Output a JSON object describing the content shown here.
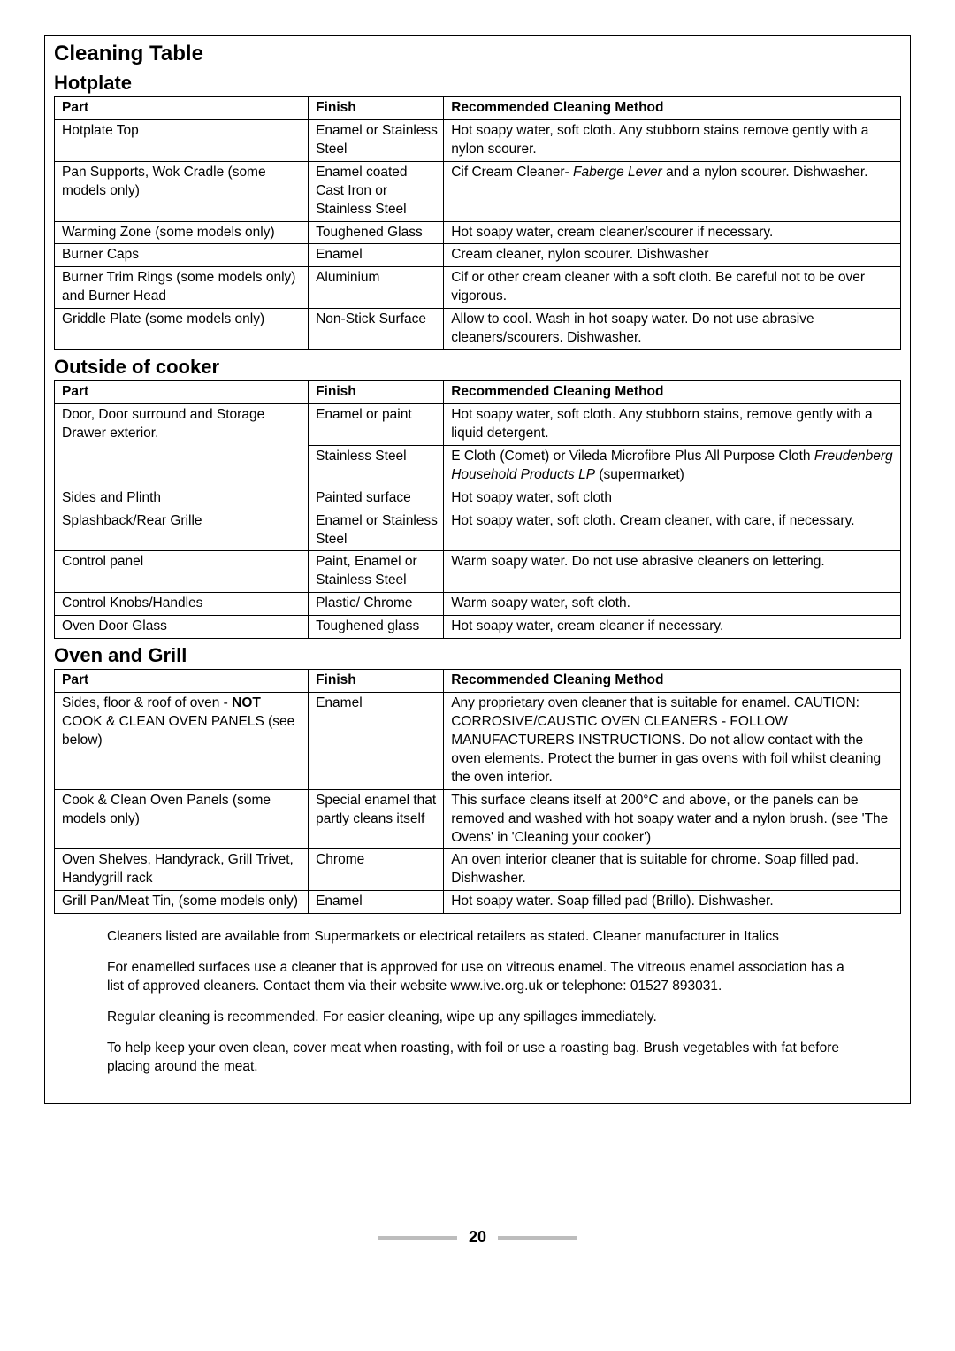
{
  "title": "Cleaning Table",
  "sections": [
    {
      "heading": "Hotplate",
      "headers": [
        "Part",
        "Finish",
        "Recommended Cleaning Method"
      ],
      "rows": [
        {
          "part": "Hotplate Top",
          "finish": "Enamel or Stainless Steel",
          "method": "Hot soapy water, soft cloth. Any stubborn stains remove gently with a nylon scourer."
        },
        {
          "part": "Pan Supports, Wok Cradle (some models only)",
          "finish": "Enamel coated Cast Iron or Stainless Steel",
          "method_html": "Cif Cream Cleaner- <em>Faberge Lever</em> and a nylon scourer. Dishwasher."
        },
        {
          "part": "Warming Zone (some models only)",
          "finish": "Toughened Glass",
          "method": "Hot soapy water, cream cleaner/scourer if necessary."
        },
        {
          "part": "Burner Caps",
          "finish": "Enamel",
          "method": "Cream cleaner, nylon scourer. Dishwasher"
        },
        {
          "part": "Burner Trim Rings (some models only) and Burner Head",
          "finish": "Aluminium",
          "method": "Cif or other cream cleaner with a soft cloth. Be careful not to be over vigorous."
        },
        {
          "part": "Griddle Plate (some models only)",
          "finish": "Non-Stick Surface",
          "method": "Allow to cool. Wash in hot soapy water. Do not use abrasive cleaners/scourers. Dishwasher."
        }
      ]
    },
    {
      "heading": "Outside of cooker",
      "headers": [
        "Part",
        "Finish",
        "Recommended Cleaning Method"
      ],
      "rows": [
        {
          "part": "Door, Door surround and Storage Drawer exterior.",
          "finish": "Enamel or paint",
          "method": "Hot soapy water, soft cloth. Any stubborn stains, remove gently with a liquid detergent.",
          "rowspan_part": 2
        },
        {
          "part": "",
          "finish": "Stainless Steel",
          "method_html": "E Cloth (Comet) or Vileda Microfibre Plus All Purpose Cloth <em>Freudenberg Household Products LP</em> (supermarket)",
          "hide_part": true
        },
        {
          "part": "Sides and Plinth",
          "finish": "Painted surface",
          "method": "Hot soapy water, soft cloth"
        },
        {
          "part": "Splashback/Rear Grille",
          "finish": "Enamel or Stainless Steel",
          "method": "Hot soapy water, soft cloth. Cream cleaner, with care, if necessary."
        },
        {
          "part": "Control panel",
          "finish": "Paint, Enamel or Stainless Steel",
          "method": "Warm soapy water. Do not use abrasive cleaners on lettering."
        },
        {
          "part": "Control Knobs/Handles",
          "finish": "Plastic/ Chrome",
          "method": "Warm soapy water, soft cloth."
        },
        {
          "part": "Oven Door Glass",
          "finish": "Toughened glass",
          "method": "Hot soapy water, cream cleaner if necessary."
        }
      ]
    },
    {
      "heading": "Oven and Grill",
      "headers": [
        "Part",
        "Finish",
        "Recommended Cleaning Method"
      ],
      "rows": [
        {
          "part_html": "Sides, floor &amp; roof of oven - <span class='strong'>NOT</span> COOK &amp; CLEAN OVEN PANELS (see below)",
          "finish": "Enamel",
          "method": "Any proprietary oven cleaner that is suitable for enamel. CAUTION: CORROSIVE/CAUSTIC OVEN CLEANERS - FOLLOW MANUFACTURERS INSTRUCTIONS. Do not allow contact with the oven elements. Protect the burner in gas ovens with foil whilst cleaning the oven interior."
        },
        {
          "part": "Cook & Clean Oven Panels (some models only)",
          "finish": "Special enamel that partly cleans itself",
          "method": "This surface cleans itself at 200°C and above, or the panels can be removed and washed with hot soapy water and a nylon brush. (see 'The Ovens' in 'Cleaning your cooker')"
        },
        {
          "part": "Oven Shelves, Handyrack, Grill Trivet, Handygrill rack",
          "finish": "Chrome",
          "method": "An oven interior cleaner that is suitable for chrome. Soap filled pad. Dishwasher."
        },
        {
          "part": "Grill Pan/Meat Tin, (some models only)",
          "finish": "Enamel",
          "method": "Hot soapy water. Soap filled pad (Brillo). Dishwasher."
        }
      ]
    }
  ],
  "notes": [
    "Cleaners listed are available from Supermarkets or electrical retailers as stated. Cleaner manufacturer in Italics",
    "For enamelled surfaces use a cleaner that is approved for use on vitreous enamel. The vitreous enamel association has a list of approved cleaners. Contact them via their website www.ive.org.uk or telephone: 01527 893031.",
    "Regular cleaning is recommended. For easier cleaning, wipe up any spillages immediately.",
    "To help keep your oven clean, cover meat when roasting, with foil or use a roasting bag. Brush vegetables with fat before placing around the meat."
  ],
  "page_number": "20"
}
